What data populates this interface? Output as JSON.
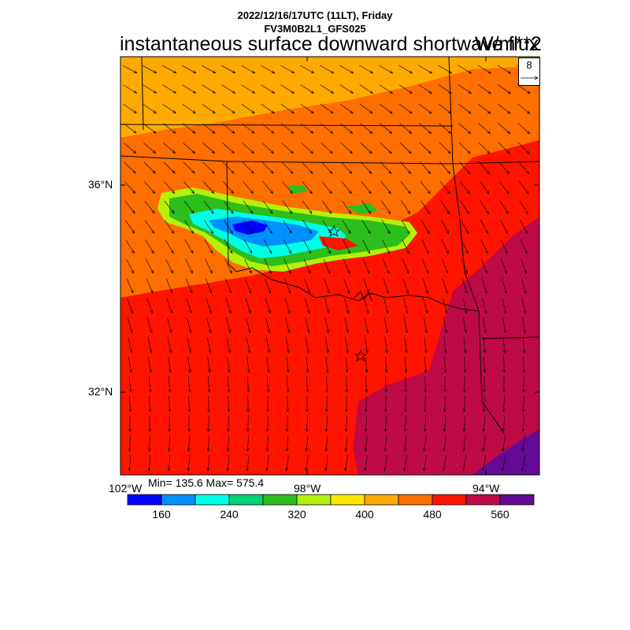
{
  "header": {
    "line1": "2022/12/16/17UTC (11LT), Friday",
    "line2": "FV3M0B2L1_GFS025",
    "title": "instantaneous surface downward shortwave flux",
    "units": "W/m**2"
  },
  "reference_vector": {
    "value": "8"
  },
  "axes": {
    "lat_labels": [
      "36°N",
      "32°N"
    ],
    "lon_labels": [
      "102°W",
      "98°W",
      "94°W"
    ]
  },
  "stats": {
    "text": "Min= 135.6 Max= 575.4"
  },
  "colorbar": {
    "colors": [
      "#0000ff",
      "#0090ff",
      "#00ffe6",
      "#00d278",
      "#2dbe1e",
      "#b4f00a",
      "#ffe600",
      "#ffaa00",
      "#ff6e00",
      "#ff1400",
      "#be0a46",
      "#640a96"
    ],
    "labels": [
      "160",
      "240",
      "320",
      "400",
      "480",
      "560"
    ]
  },
  "map_legend": {
    "description_colors": {
      "yellow_orange": "#ffaa00",
      "orange": "#ff6e00",
      "red": "#ff1400",
      "crimson": "#be0a46",
      "purple": "#640a96"
    }
  }
}
